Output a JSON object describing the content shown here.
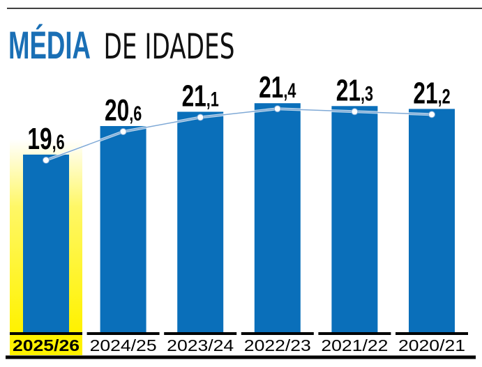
{
  "chart_data": {
    "type": "bar",
    "title_bold": "MÉDIA",
    "title_light": "DE IDADES",
    "categories": [
      "2025/26",
      "2024/25",
      "2023/24",
      "2022/23",
      "2021/22",
      "2020/21"
    ],
    "values": [
      19.6,
      20.6,
      21.1,
      21.4,
      21.3,
      21.2
    ],
    "value_labels": [
      {
        "int": "19",
        "dec": ",6"
      },
      {
        "int": "20",
        "dec": ",6"
      },
      {
        "int": "21",
        "dec": ",1"
      },
      {
        "int": "21",
        "dec": ",4"
      },
      {
        "int": "21",
        "dec": ",3"
      },
      {
        "int": "21",
        "dec": ",2"
      }
    ],
    "highlighted_index": 0,
    "overlay_line": true,
    "xlabel": "",
    "ylabel": "",
    "colors": {
      "bar": "#0a6fba",
      "highlight": "#fff200",
      "line": "#7fa9d6",
      "title": "#1a6fb5"
    }
  }
}
